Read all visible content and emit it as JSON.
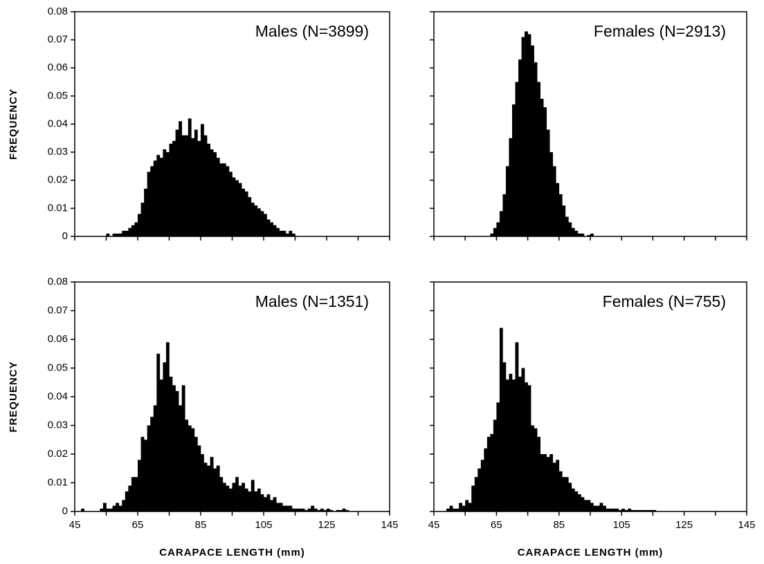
{
  "chart_data": [
    {
      "type": "histogram",
      "annotation": "Males (N=3899)",
      "ylabel": "FREQUENCY",
      "color": "#000000",
      "xlim": [
        45,
        145
      ],
      "ylim": [
        0,
        0.08
      ],
      "yticks": [
        0,
        0.01,
        0.02,
        0.03,
        0.04,
        0.05,
        0.06,
        0.07,
        0.08
      ],
      "xticks": [
        45,
        65,
        85,
        105,
        125,
        145
      ],
      "xminorticks": [
        55,
        75,
        95,
        115,
        135
      ],
      "xticklabels": false,
      "yticklabels": true,
      "bins": [
        55,
        56,
        57,
        58,
        59,
        60,
        61,
        62,
        63,
        64,
        65,
        66,
        67,
        68,
        69,
        70,
        71,
        72,
        73,
        74,
        75,
        76,
        77,
        78,
        79,
        80,
        81,
        82,
        83,
        84,
        85,
        86,
        87,
        88,
        89,
        90,
        91,
        92,
        93,
        94,
        95,
        96,
        97,
        98,
        99,
        100,
        101,
        102,
        103,
        104,
        105,
        106,
        107,
        108,
        109,
        110,
        111,
        112,
        113,
        114,
        115
      ],
      "values": [
        0.001,
        0,
        0.001,
        0.001,
        0.001,
        0.002,
        0.002,
        0.003,
        0.004,
        0.005,
        0.008,
        0.012,
        0.017,
        0.023,
        0.025,
        0.027,
        0.029,
        0.028,
        0.031,
        0.03,
        0.033,
        0.034,
        0.038,
        0.041,
        0.036,
        0.036,
        0.042,
        0.035,
        0.038,
        0.034,
        0.04,
        0.036,
        0.033,
        0.031,
        0.03,
        0.028,
        0.026,
        0.026,
        0.025,
        0.023,
        0.021,
        0.02,
        0.019,
        0.017,
        0.016,
        0.014,
        0.012,
        0.011,
        0.01,
        0.009,
        0.008,
        0.006,
        0.005,
        0.004,
        0.003,
        0.002,
        0.002,
        0.001,
        0.002,
        0.001
      ]
    },
    {
      "type": "histogram",
      "annotation": "Females (N=2913)",
      "color": "#000000",
      "xlim": [
        45,
        145
      ],
      "ylim": [
        0,
        0.08
      ],
      "yticks": [
        0,
        0.01,
        0.02,
        0.03,
        0.04,
        0.05,
        0.06,
        0.07,
        0.08
      ],
      "xticks": [
        45,
        65,
        85,
        105,
        125,
        145
      ],
      "xminorticks": [
        55,
        75,
        95,
        115,
        135
      ],
      "xticklabels": false,
      "yticklabels": false,
      "bins": [
        63,
        64,
        65,
        66,
        67,
        68,
        69,
        70,
        71,
        72,
        73,
        74,
        75,
        76,
        77,
        78,
        79,
        80,
        81,
        82,
        83,
        84,
        85,
        86,
        87,
        88,
        89,
        90,
        91,
        92,
        93,
        94,
        95,
        96
      ],
      "values": [
        0.001,
        0.003,
        0.005,
        0.009,
        0.015,
        0.025,
        0.035,
        0.047,
        0.055,
        0.063,
        0.071,
        0.073,
        0.072,
        0.068,
        0.062,
        0.055,
        0.049,
        0.046,
        0.038,
        0.03,
        0.025,
        0.019,
        0.015,
        0.011,
        0.007,
        0.005,
        0.003,
        0.002,
        0.001,
        0.001,
        0,
        0.0005,
        0.001
      ]
    },
    {
      "type": "histogram",
      "annotation": "Males (N=1351)",
      "ylabel": "FREQUENCY",
      "xlabel": "CARAPACE LENGTH (mm)",
      "color": "#000000",
      "xlim": [
        45,
        145
      ],
      "ylim": [
        0,
        0.08
      ],
      "yticks": [
        0,
        0.01,
        0.02,
        0.03,
        0.04,
        0.05,
        0.06,
        0.07,
        0.08
      ],
      "xticks": [
        45,
        65,
        85,
        105,
        125,
        145
      ],
      "xminorticks": [
        55,
        75,
        95,
        115,
        135
      ],
      "xticklabels": true,
      "yticklabels": true,
      "bins": [
        47,
        48,
        49,
        50,
        51,
        52,
        53,
        54,
        55,
        56,
        57,
        58,
        59,
        60,
        61,
        62,
        63,
        64,
        65,
        66,
        67,
        68,
        69,
        70,
        71,
        72,
        73,
        74,
        75,
        76,
        77,
        78,
        79,
        80,
        81,
        82,
        83,
        84,
        85,
        86,
        87,
        88,
        89,
        90,
        91,
        92,
        93,
        94,
        95,
        96,
        97,
        98,
        99,
        100,
        101,
        102,
        103,
        104,
        105,
        106,
        107,
        108,
        109,
        110,
        111,
        112,
        113,
        114,
        115,
        116,
        117,
        118,
        119,
        120,
        121,
        122,
        123,
        124,
        125,
        126,
        127,
        128,
        129,
        130,
        131,
        132
      ],
      "values": [
        0.001,
        0,
        0,
        0,
        0,
        0,
        0.001,
        0.003,
        0.001,
        0.001,
        0.002,
        0.003,
        0.002,
        0.004,
        0.007,
        0.009,
        0.012,
        0.012,
        0.018,
        0.026,
        0.025,
        0.03,
        0.033,
        0.037,
        0.055,
        0.046,
        0.052,
        0.059,
        0.047,
        0.044,
        0.042,
        0.037,
        0.044,
        0.032,
        0.03,
        0.029,
        0.026,
        0.023,
        0.02,
        0.017,
        0.016,
        0.019,
        0.015,
        0.016,
        0.012,
        0.01,
        0.009,
        0.008,
        0.01,
        0.012,
        0.009,
        0.01,
        0.008,
        0.007,
        0.011,
        0.007,
        0.008,
        0.006,
        0.005,
        0.006,
        0.004,
        0.005,
        0.003,
        0.003,
        0.002,
        0.002,
        0.002,
        0.001,
        0.001,
        0.001,
        0.001,
        0.0005,
        0.001,
        0.002,
        0.001,
        0.0005,
        0.001,
        0.0005,
        0.001,
        0.0005,
        0,
        0.0005,
        0.0005,
        0.001,
        0.0005
      ]
    },
    {
      "type": "histogram",
      "annotation": "Females (N=755)",
      "xlabel": "CARAPACE LENGTH (mm)",
      "color": "#000000",
      "xlim": [
        45,
        145
      ],
      "ylim": [
        0,
        0.08
      ],
      "yticks": [
        0,
        0.01,
        0.02,
        0.03,
        0.04,
        0.05,
        0.06,
        0.07,
        0.08
      ],
      "xticks": [
        45,
        65,
        85,
        105,
        125,
        145
      ],
      "xminorticks": [
        55,
        75,
        95,
        115,
        135
      ],
      "xticklabels": true,
      "yticklabels": false,
      "bins": [
        49,
        50,
        51,
        52,
        53,
        54,
        55,
        56,
        57,
        58,
        59,
        60,
        61,
        62,
        63,
        64,
        65,
        66,
        67,
        68,
        69,
        70,
        71,
        72,
        73,
        74,
        75,
        76,
        77,
        78,
        79,
        80,
        81,
        82,
        83,
        84,
        85,
        86,
        87,
        88,
        89,
        90,
        91,
        92,
        93,
        94,
        95,
        96,
        97,
        98,
        99,
        100,
        101,
        102,
        103,
        104,
        105,
        106,
        107,
        108,
        109,
        110,
        111,
        112,
        113,
        114,
        115,
        116
      ],
      "values": [
        0.001,
        0.002,
        0.001,
        0.001,
        0.003,
        0.002,
        0.004,
        0.003,
        0.009,
        0.012,
        0.015,
        0.018,
        0.022,
        0.026,
        0.027,
        0.032,
        0.038,
        0.064,
        0.052,
        0.046,
        0.048,
        0.046,
        0.059,
        0.047,
        0.05,
        0.045,
        0.044,
        0.03,
        0.029,
        0.026,
        0.02,
        0.02,
        0.019,
        0.02,
        0.017,
        0.018,
        0.014,
        0.012,
        0.012,
        0.01,
        0.008,
        0.007,
        0.006,
        0.005,
        0.004,
        0.004,
        0.003,
        0.002,
        0.002,
        0.003,
        0.002,
        0.001,
        0.001,
        0.001,
        0.001,
        0.0005,
        0.001,
        0.0005,
        0.001,
        0.0005,
        0.0005,
        0.0005,
        0.0005,
        0.0005,
        0.0005,
        0.0005,
        0.0005
      ]
    }
  ]
}
